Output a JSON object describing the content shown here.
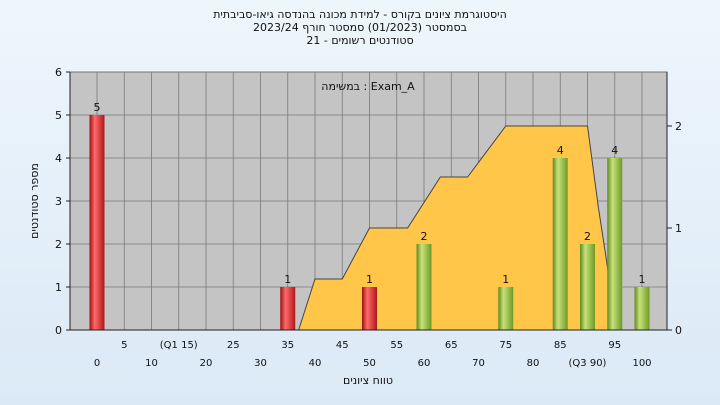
{
  "chart_data": {
    "type": "bar",
    "title_lines": [
      "היסטוגרמת ציונים בקורס - למידת מכונה בהנדסה גיאו-סביבתית",
      "בסמסטר  (01/2023)  סמסטר חורף 2023/24",
      "סטודנטים רשומים - 21"
    ],
    "legend": "במשימה : Exam_A",
    "xlabel": "טווח ציונים",
    "ylabel": "מספר סטודנטים",
    "ylim": [
      0,
      6
    ],
    "yticks": [
      0,
      1,
      2,
      3,
      4,
      5,
      6
    ],
    "y2ticks": [
      0,
      1,
      2
    ],
    "x_ticks_upper": [
      "5",
      "(Q1 15)",
      "25",
      "35",
      "45",
      "55",
      "65",
      "75",
      "85",
      "95"
    ],
    "x_ticks_lower": [
      "0",
      "10",
      "20",
      "30",
      "40",
      "50",
      "60",
      "70",
      "80",
      "(Q3 90)",
      "100"
    ],
    "bars": [
      {
        "x": 0,
        "value": 5,
        "color": "#e03030"
      },
      {
        "x": 35,
        "value": 1,
        "color": "#e03030"
      },
      {
        "x": 50,
        "value": 1,
        "color": "#e03030"
      },
      {
        "x": 60,
        "value": 2,
        "color": "#8fbf3a"
      },
      {
        "x": 75,
        "value": 1,
        "color": "#8fbf3a"
      },
      {
        "x": 85,
        "value": 4,
        "color": "#8fbf3a"
      },
      {
        "x": 90,
        "value": 2,
        "color": "#8fbf3a"
      },
      {
        "x": 95,
        "value": 4,
        "color": "#8fbf3a"
      },
      {
        "x": 100,
        "value": 1,
        "color": "#8fbf3a"
      }
    ],
    "area": {
      "color": "#ffc64a",
      "points": [
        {
          "x": 37,
          "y2": 0
        },
        {
          "x": 40,
          "y2": 0.5
        },
        {
          "x": 45,
          "y2": 0.5
        },
        {
          "x": 50,
          "y2": 1
        },
        {
          "x": 57,
          "y2": 1
        },
        {
          "x": 63,
          "y2": 1.5
        },
        {
          "x": 68,
          "y2": 1.5
        },
        {
          "x": 75,
          "y2": 2
        },
        {
          "x": 90,
          "y2": 2
        },
        {
          "x": 92,
          "y2": 1.2
        },
        {
          "x": 94,
          "y2": 0.5
        },
        {
          "x": 95,
          "y2": 0
        }
      ]
    }
  }
}
